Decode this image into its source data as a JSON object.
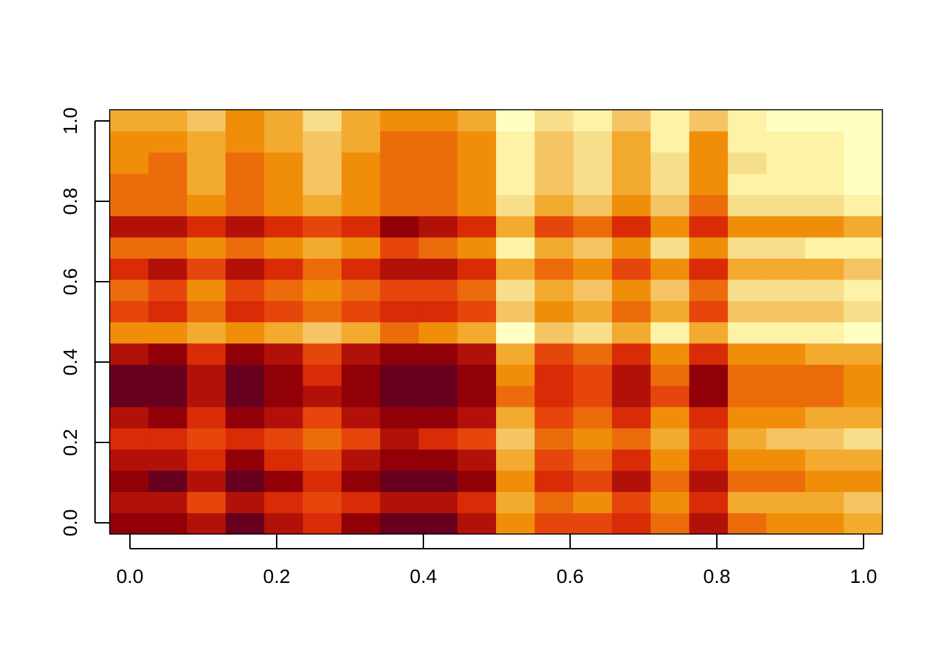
{
  "chart_data": {
    "type": "heatmap",
    "title": "",
    "xlabel": "",
    "ylabel": "",
    "xlim": [
      0,
      1
    ],
    "ylim": [
      0,
      1
    ],
    "x_ticks": [
      "0.0",
      "0.2",
      "0.4",
      "0.6",
      "0.8",
      "1.0"
    ],
    "y_ticks": [
      "0.0",
      "0.2",
      "0.4",
      "0.6",
      "0.8",
      "1.0"
    ],
    "n_cols": 20,
    "n_rows": 20,
    "palette": [
      "#67001F",
      "#920007",
      "#B2110A",
      "#D92B06",
      "#E6460C",
      "#EC6C0C",
      "#F08E0A",
      "#F2AA2F",
      "#F5C464",
      "#F7DE8A",
      "#FEF2A6",
      "#FFFFC3"
    ],
    "rows_bottom_to_top": [
      [
        1,
        1,
        2,
        0,
        2,
        3,
        1,
        0,
        0,
        2,
        6,
        4,
        4,
        3,
        5,
        2,
        5,
        6,
        6,
        7
      ],
      [
        2,
        2,
        4,
        2,
        3,
        4,
        3,
        2,
        2,
        3,
        7,
        5,
        6,
        4,
        6,
        3,
        7,
        7,
        7,
        8
      ],
      [
        1,
        0,
        2,
        0,
        1,
        3,
        1,
        0,
        0,
        1,
        6,
        3,
        4,
        2,
        5,
        2,
        5,
        5,
        6,
        6
      ],
      [
        2,
        2,
        3,
        1,
        3,
        4,
        2,
        1,
        1,
        2,
        7,
        4,
        5,
        3,
        6,
        3,
        6,
        6,
        7,
        7
      ],
      [
        3,
        3,
        4,
        3,
        4,
        5,
        4,
        2,
        3,
        4,
        8,
        5,
        6,
        5,
        7,
        4,
        7,
        8,
        8,
        9
      ],
      [
        2,
        1,
        3,
        1,
        2,
        4,
        2,
        1,
        1,
        2,
        7,
        4,
        5,
        3,
        6,
        3,
        6,
        6,
        7,
        7
      ],
      [
        0,
        0,
        2,
        0,
        1,
        2,
        1,
        0,
        0,
        1,
        5,
        3,
        4,
        2,
        4,
        1,
        5,
        5,
        5,
        6
      ],
      [
        0,
        0,
        2,
        0,
        1,
        3,
        1,
        0,
        0,
        1,
        6,
        3,
        4,
        2,
        5,
        1,
        5,
        5,
        5,
        6
      ],
      [
        2,
        1,
        3,
        1,
        2,
        4,
        2,
        1,
        1,
        2,
        7,
        4,
        5,
        3,
        6,
        3,
        6,
        6,
        7,
        7
      ],
      [
        6,
        6,
        7,
        6,
        7,
        8,
        7,
        5,
        6,
        7,
        11,
        8,
        9,
        7,
        10,
        7,
        10,
        10,
        10,
        11
      ],
      [
        4,
        3,
        5,
        3,
        4,
        5,
        4,
        3,
        3,
        4,
        8,
        6,
        7,
        5,
        7,
        4,
        8,
        8,
        8,
        9
      ],
      [
        5,
        4,
        6,
        4,
        5,
        6,
        5,
        4,
        4,
        5,
        9,
        7,
        8,
        6,
        8,
        5,
        9,
        9,
        9,
        10
      ],
      [
        3,
        2,
        4,
        2,
        3,
        5,
        3,
        2,
        2,
        3,
        7,
        5,
        6,
        4,
        6,
        3,
        7,
        7,
        7,
        8
      ],
      [
        5,
        5,
        6,
        5,
        6,
        7,
        6,
        4,
        5,
        6,
        10,
        7,
        8,
        6,
        9,
        6,
        9,
        9,
        10,
        10
      ],
      [
        2,
        2,
        3,
        2,
        3,
        4,
        3,
        1,
        2,
        3,
        7,
        4,
        5,
        3,
        6,
        3,
        6,
        6,
        6,
        7
      ],
      [
        5,
        5,
        6,
        5,
        6,
        7,
        6,
        5,
        5,
        6,
        9,
        7,
        8,
        6,
        8,
        5,
        9,
        9,
        9,
        10
      ],
      [
        5,
        5,
        7,
        5,
        6,
        8,
        6,
        5,
        5,
        6,
        10,
        8,
        9,
        7,
        9,
        6,
        10,
        10,
        10,
        11
      ],
      [
        6,
        5,
        7,
        5,
        6,
        8,
        6,
        5,
        5,
        6,
        10,
        8,
        9,
        7,
        9,
        6,
        9,
        10,
        10,
        11
      ],
      [
        6,
        6,
        7,
        6,
        7,
        8,
        7,
        5,
        5,
        6,
        10,
        8,
        9,
        7,
        10,
        6,
        10,
        10,
        10,
        11
      ],
      [
        7,
        7,
        8,
        6,
        7,
        9,
        7,
        6,
        6,
        7,
        11,
        9,
        10,
        8,
        10,
        8,
        10,
        11,
        11,
        11
      ]
    ]
  }
}
